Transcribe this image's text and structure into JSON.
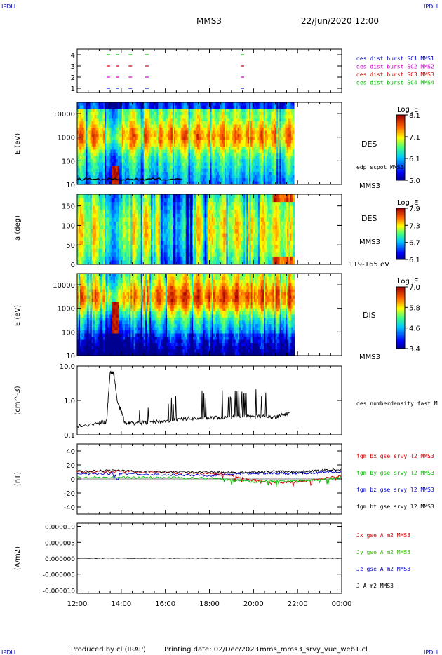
{
  "header": {
    "corner_left_top": "IPDLI",
    "corner_right_top": "IPDLI",
    "spacecraft": "MMS3",
    "datetime": "22/Jun/2020 12:00",
    "corner_left_bottom": "IPDLI",
    "corner_right_bottom": "IPDLI"
  },
  "footer": {
    "produced_by": "Produced by cl (IRAP)",
    "printing_date": "Printing date: 02/Dec/2023",
    "filename": "mms_mms3_srvy_vue_web1.cl"
  },
  "time_axis": {
    "ticks": [
      "12:00",
      "14:00",
      "16:00",
      "18:00",
      "20:00",
      "22:00",
      "00:00"
    ]
  },
  "panels": {
    "burst": {
      "ticks": [
        "4",
        "3",
        "2",
        "1"
      ],
      "legend": [
        {
          "text": "des dist burst SC1 MMS1",
          "color": "#0000cc"
        },
        {
          "text": "des dist burst SC2 MMS2",
          "color": "#cc00cc"
        },
        {
          "text": "des dist burst SC3 MMS3",
          "color": "#cc0000"
        },
        {
          "text": "des dist burst SC4 MMS4",
          "color": "#00bb00"
        }
      ]
    },
    "des_energy": {
      "ylabel": "E (eV)",
      "ticks": [
        "10000",
        "1000",
        "100",
        "10"
      ],
      "label": "DES",
      "overlay_label": "edp scpot MMS3",
      "sc_label": "MMS3",
      "cbar_title": "Log JE",
      "cbar_ticks": [
        "8.1",
        "7.1",
        "6.1",
        "5.0"
      ]
    },
    "des_pitch": {
      "ylabel": "a (deg)",
      "ticks": [
        "150",
        "100",
        "50",
        "0"
      ],
      "label": "DES",
      "sc_label": "MMS3",
      "energy_label": "119-165 eV",
      "cbar_title": "Log JE",
      "cbar_ticks": [
        "7.9",
        "7.3",
        "6.7",
        "6.1"
      ]
    },
    "dis_energy": {
      "ylabel": "E (eV)",
      "ticks": [
        "10000",
        "1000",
        "100",
        "10"
      ],
      "label": "DIS",
      "sc_label": "MMS3",
      "cbar_title": "Log JE",
      "cbar_ticks": [
        "7.0",
        "5.8",
        "4.6",
        "3.4"
      ]
    },
    "density": {
      "ylabel": "(cm^-3)",
      "ticks": [
        "10.0",
        "1.0",
        "0.1"
      ],
      "legend": "des numberdensity fast M"
    },
    "bfield": {
      "ylabel": "(nT)",
      "ticks": [
        "40",
        "20",
        "0",
        "-20",
        "-40"
      ],
      "legend": [
        {
          "text": "fgm bx gse srvy l2 MMS3",
          "color": "#cc0000"
        },
        {
          "text": "fgm by gse srvy l2 MMS3",
          "color": "#00bb00"
        },
        {
          "text": "fgm bz gse srvy l2 MMS3",
          "color": "#0000cc"
        },
        {
          "text": "fgm bt gse srvy l2 MMS3",
          "color": "#000000"
        }
      ]
    },
    "current": {
      "ylabel": "(A/m2)",
      "ticks": [
        "0.000010",
        "0.000005",
        "0.000000",
        "-0.000005",
        "-0.000010"
      ],
      "legend": [
        {
          "text": "Jx gse A m2 MMS3",
          "color": "#cc0000"
        },
        {
          "text": "Jy gse A m2 MMS3",
          "color": "#33bb00"
        },
        {
          "text": "Jz gse A m2 MMS3",
          "color": "#0000cc"
        },
        {
          "text": "J A m2 MMS3",
          "color": "#000000"
        }
      ]
    }
  },
  "chart_data": [
    {
      "type": "scatter",
      "title": "des dist burst",
      "x_range": [
        "12:00",
        "00:00"
      ],
      "series": [
        {
          "name": "des dist burst SC1 MMS1",
          "y": 1,
          "x": [
            "13:20",
            "13:45",
            "14:20",
            "15:05",
            "19:25"
          ]
        },
        {
          "name": "des dist burst SC2 MMS2",
          "y": 2,
          "x": [
            "13:20",
            "13:45",
            "14:20",
            "15:05",
            "19:25"
          ]
        },
        {
          "name": "des dist burst SC3 MMS3",
          "y": 3,
          "x": [
            "13:20",
            "13:45",
            "14:20",
            "15:05",
            "19:25"
          ]
        },
        {
          "name": "des dist burst SC4 MMS4",
          "y": 4,
          "x": [
            "13:20",
            "13:45",
            "14:20",
            "15:05",
            "19:25"
          ]
        }
      ]
    },
    {
      "type": "heatmap",
      "title": "DES",
      "ylabel": "E (eV)",
      "yscale": "log",
      "ylim": [
        10,
        30000
      ],
      "colorbar": "Log JE",
      "clim": [
        5.0,
        8.1
      ],
      "data_end": "21:50",
      "overlay": {
        "name": "edp scpot MMS3",
        "x_end": "16:50",
        "y_typical": 15
      }
    },
    {
      "type": "heatmap",
      "title": "DES",
      "ylabel": "a (deg)",
      "ylim": [
        0,
        180
      ],
      "energy_band": "119-165 eV",
      "colorbar": "Log JE",
      "clim": [
        6.1,
        7.9
      ]
    },
    {
      "type": "heatmap",
      "title": "DIS",
      "ylabel": "E (eV)",
      "yscale": "log",
      "ylim": [
        10,
        30000
      ],
      "colorbar": "Log JE",
      "clim": [
        3.4,
        7.0
      ]
    },
    {
      "type": "line",
      "ylabel": "(cm^-3)",
      "yscale": "log",
      "ylim": [
        0.1,
        10
      ],
      "series": [
        {
          "name": "des numberdensity fast M",
          "x": [
            "12:00",
            "13:00",
            "13:20",
            "13:30",
            "13:40",
            "13:50",
            "14:00",
            "14:10",
            "14:30",
            "15:00",
            "15:30",
            "16:00",
            "16:30",
            "17:00",
            "17:30",
            "18:00",
            "18:30",
            "19:00",
            "19:30",
            "20:00",
            "20:30",
            "21:00",
            "21:20",
            "21:40"
          ],
          "y": [
            0.18,
            0.22,
            0.25,
            7.0,
            6.0,
            0.8,
            0.5,
            0.22,
            0.22,
            0.23,
            0.24,
            0.25,
            0.27,
            0.3,
            0.3,
            0.31,
            0.32,
            0.33,
            0.33,
            0.35,
            0.34,
            0.32,
            0.38,
            0.45
          ]
        }
      ]
    },
    {
      "type": "line",
      "ylabel": "(nT)",
      "ylim": [
        -50,
        50
      ],
      "series": [
        {
          "name": "fgm bx gse srvy l2 MMS3",
          "x": [
            "12:00",
            "14:00",
            "16:00",
            "18:00",
            "19:00",
            "20:00",
            "21:00",
            "22:00",
            "23:00",
            "00:00"
          ],
          "y": [
            10,
            11,
            9,
            8,
            5,
            -2,
            -5,
            -4,
            0,
            5
          ]
        },
        {
          "name": "fgm by gse srvy l2 MMS3",
          "x": [
            "12:00",
            "14:00",
            "16:00",
            "18:00",
            "19:00",
            "20:00",
            "21:00",
            "22:00",
            "23:00",
            "00:00"
          ],
          "y": [
            3,
            2,
            2,
            1,
            -1,
            -4,
            -3,
            -3,
            -1,
            2
          ]
        },
        {
          "name": "fgm bz gse srvy l2 MMS3",
          "x": [
            "12:00",
            "14:00",
            "16:00",
            "18:00",
            "19:00",
            "20:00",
            "21:00",
            "22:00",
            "23:00",
            "00:00"
          ],
          "y": [
            7,
            8,
            6,
            5,
            7,
            8,
            8,
            8,
            9,
            10
          ]
        },
        {
          "name": "fgm bt gse srvy l2 MMS3",
          "x": [
            "12:00",
            "14:00",
            "16:00",
            "18:00",
            "19:00",
            "20:00",
            "21:00",
            "22:00",
            "23:00",
            "00:00"
          ],
          "y": [
            11,
            12,
            10,
            10,
            9,
            10,
            11,
            10,
            12,
            14
          ]
        }
      ]
    },
    {
      "type": "line",
      "ylabel": "(A/m2)",
      "ylim": [
        -1e-05,
        1e-05
      ],
      "series": [
        {
          "name": "J A m2 MMS3",
          "x": [
            "12:00",
            "00:00"
          ],
          "y": [
            0.0,
            0.0
          ]
        }
      ]
    }
  ]
}
